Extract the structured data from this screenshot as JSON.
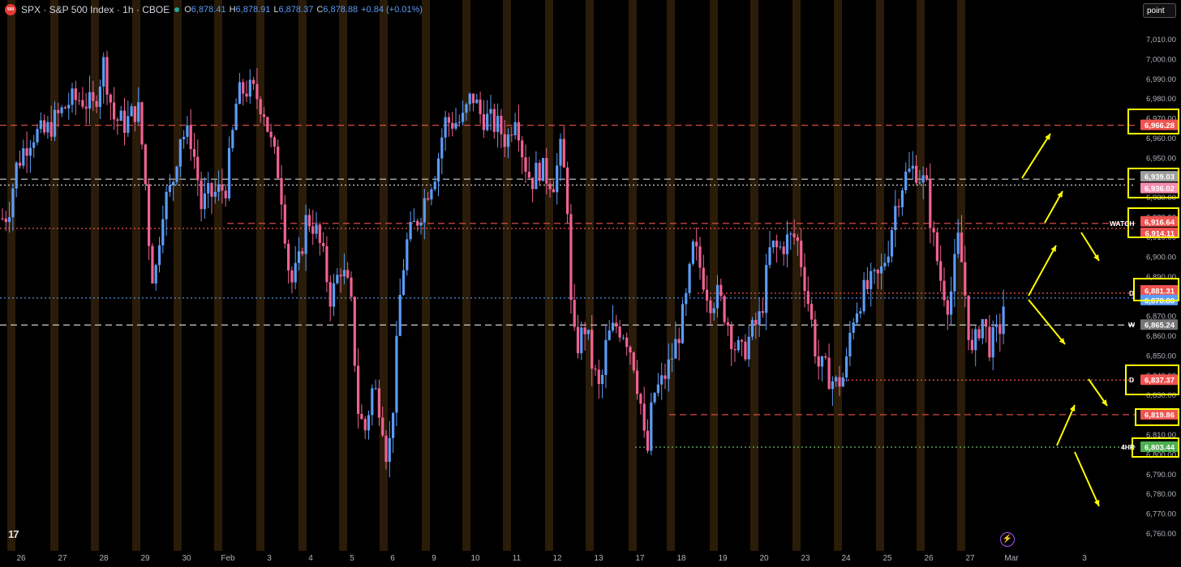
{
  "header": {
    "logo_text": "500",
    "symbol": "SPX · S&P 500 Index · 1h · CBOE",
    "o_label": "O",
    "o_val": "6,878.41",
    "h_label": "H",
    "h_val": "6,878.91",
    "l_label": "L",
    "l_val": "6,878.37",
    "c_label": "C",
    "c_val": "6,878.88",
    "change": "+0.84 (+0.01%)"
  },
  "toolbar": {
    "point_label": "point"
  },
  "branding": {
    "tv_logo": "17"
  },
  "colors": {
    "up": "#5b9cf6",
    "down": "#f06292",
    "session": "#2a1c08",
    "red_line": "#ef5350",
    "white_line": "#cfcfcf",
    "green_line": "#66bb6a",
    "yellow": "#ffff00"
  },
  "chart_data": {
    "type": "candlestick",
    "y_axis": {
      "min": 6755,
      "max": 7018,
      "ticks": [
        "7,010.00",
        "7,000.00",
        "6,990.00",
        "6,980.00",
        "6,970.00",
        "6,960.00",
        "6,950.00",
        "6,940.00",
        "6,930.00",
        "6,920.00",
        "6,910.00",
        "6,900.00",
        "6,890.00",
        "6,880.00",
        "6,870.00",
        "6,860.00",
        "6,850.00",
        "6,840.00",
        "6,830.00",
        "6,820.00",
        "6,810.00",
        "6,800.00",
        "6,790.00",
        "6,780.00",
        "6,770.00",
        "6,760.00"
      ]
    },
    "x_axis": {
      "labels": [
        "26",
        "27",
        "28",
        "29",
        "30",
        "Feb",
        "3",
        "4",
        "5",
        "6",
        "9",
        "10",
        "11",
        "12",
        "13",
        "17",
        "18",
        "19",
        "20",
        "23",
        "24",
        "25",
        "26",
        "27",
        "Mar",
        "3"
      ]
    },
    "anchors": [
      [
        0,
        6918
      ],
      [
        10,
        6922
      ],
      [
        20,
        6945
      ],
      [
        30,
        6955
      ],
      [
        40,
        6962
      ],
      [
        55,
        6962
      ],
      [
        70,
        6970
      ],
      [
        85,
        6978
      ],
      [
        100,
        6980
      ],
      [
        115,
        6975
      ],
      [
        128,
        6998
      ],
      [
        140,
        6970
      ],
      [
        155,
        6967
      ],
      [
        170,
        6976
      ],
      [
        178,
        6945
      ],
      [
        185,
        6900
      ],
      [
        190,
        6885
      ],
      [
        200,
        6925
      ],
      [
        212,
        6935
      ],
      [
        222,
        6962
      ],
      [
        235,
        6960
      ],
      [
        242,
        6945
      ],
      [
        248,
        6925
      ],
      [
        256,
        6930
      ],
      [
        266,
        6932
      ],
      [
        278,
        6935
      ],
      [
        285,
        6955
      ],
      [
        292,
        6980
      ],
      [
        302,
        6985
      ],
      [
        315,
        6982
      ],
      [
        325,
        6975
      ],
      [
        335,
        6955
      ],
      [
        345,
        6940
      ],
      [
        352,
        6910
      ],
      [
        358,
        6885
      ],
      [
        368,
        6895
      ],
      [
        378,
        6920
      ],
      [
        388,
        6915
      ],
      [
        398,
        6900
      ],
      [
        408,
        6878
      ],
      [
        420,
        6895
      ],
      [
        432,
        6880
      ],
      [
        442,
        6820
      ],
      [
        450,
        6812
      ],
      [
        460,
        6835
      ],
      [
        470,
        6822
      ],
      [
        478,
        6795
      ],
      [
        486,
        6832
      ],
      [
        492,
        6875
      ],
      [
        500,
        6905
      ],
      [
        510,
        6915
      ],
      [
        518,
        6922
      ],
      [
        528,
        6935
      ],
      [
        538,
        6945
      ],
      [
        548,
        6968
      ],
      [
        558,
        6968
      ],
      [
        570,
        6968
      ],
      [
        582,
        6982
      ],
      [
        592,
        6972
      ],
      [
        605,
        6968
      ],
      [
        615,
        6965
      ],
      [
        625,
        6958
      ],
      [
        636,
        6975
      ],
      [
        645,
        6950
      ],
      [
        655,
        6938
      ],
      [
        665,
        6945
      ],
      [
        675,
        6940
      ],
      [
        683,
        6938
      ],
      [
        692,
        6955
      ],
      [
        700,
        6925
      ],
      [
        705,
        6860
      ],
      [
        712,
        6855
      ],
      [
        722,
        6865
      ],
      [
        730,
        6845
      ],
      [
        740,
        6830
      ],
      [
        748,
        6858
      ],
      [
        760,
        6865
      ],
      [
        770,
        6862
      ],
      [
        780,
        6850
      ],
      [
        790,
        6825
      ],
      [
        797,
        6795
      ],
      [
        805,
        6830
      ],
      [
        815,
        6835
      ],
      [
        825,
        6845
      ],
      [
        835,
        6858
      ],
      [
        845,
        6875
      ],
      [
        855,
        6905
      ],
      [
        865,
        6892
      ],
      [
        875,
        6878
      ],
      [
        885,
        6880
      ],
      [
        895,
        6870
      ],
      [
        905,
        6855
      ],
      [
        915,
        6850
      ],
      [
        925,
        6860
      ],
      [
        938,
        6870
      ],
      [
        950,
        6905
      ],
      [
        960,
        6903
      ],
      [
        970,
        6908
      ],
      [
        982,
        6910
      ],
      [
        992,
        6888
      ],
      [
        1000,
        6868
      ],
      [
        1008,
        6845
      ],
      [
        1018,
        6842
      ],
      [
        1030,
        6835
      ],
      [
        1042,
        6840
      ],
      [
        1050,
        6868
      ],
      [
        1062,
        6880
      ],
      [
        1072,
        6885
      ],
      [
        1085,
        6890
      ],
      [
        1095,
        6905
      ],
      [
        1105,
        6928
      ],
      [
        1115,
        6940
      ],
      [
        1128,
        6945
      ],
      [
        1142,
        6935
      ],
      [
        1150,
        6910
      ],
      [
        1160,
        6888
      ],
      [
        1170,
        6875
      ],
      [
        1182,
        6910
      ],
      [
        1190,
        6880
      ],
      [
        1198,
        6848
      ],
      [
        1210,
        6870
      ],
      [
        1220,
        6855
      ],
      [
        1232,
        6862
      ],
      [
        1238,
        6878
      ]
    ],
    "horizontal_lines": [
      {
        "price": 6966.28,
        "color": "red",
        "style": "dashed",
        "from_x": 0
      },
      {
        "price": 6939.03,
        "color": "white",
        "style": "dashed",
        "from_x": 0
      },
      {
        "price": 6936.02,
        "color": "white",
        "style": "dotted",
        "from_x": 0
      },
      {
        "price": 6916.64,
        "color": "red",
        "style": "dashed",
        "from_x": 280
      },
      {
        "price": 6914.11,
        "color": "red",
        "style": "dotted",
        "from_x": 0
      },
      {
        "price": 6881.31,
        "color": "red",
        "style": "dotted",
        "from_x": 860
      },
      {
        "price": 6878.88,
        "color": "blue",
        "style": "dotted",
        "from_x": 0
      },
      {
        "price": 6865.24,
        "color": "white",
        "style": "dashed",
        "from_x": 0
      },
      {
        "price": 6837.37,
        "color": "red",
        "style": "dotted",
        "from_x": 1040
      },
      {
        "price": 6819.86,
        "color": "red",
        "style": "dashed",
        "from_x": 825
      },
      {
        "price": 6803.44,
        "color": "green",
        "style": "dotted",
        "from_x": 783
      }
    ],
    "price_labels": [
      {
        "text": "6,966.28",
        "price": 6966.28,
        "color": "#ef5350",
        "boxed": true
      },
      {
        "text": "6,939.03",
        "price": 6939.03,
        "color": "#9e9e9e",
        "boxed": true
      },
      {
        "text": "6,936.02",
        "price": 6936.02,
        "color": "#f48fb1",
        "boxed": true
      },
      {
        "text": "6,916.64",
        "price": 6916.64,
        "color": "#ef5350",
        "boxed": true
      },
      {
        "text": "6,914.11",
        "price": 6914.11,
        "color": "#ef5350",
        "boxed": true
      },
      {
        "text": "6,881.31",
        "price": 6881.31,
        "color": "#ef5350",
        "boxed": true
      },
      {
        "text": "6,878.88",
        "price": 6878.88,
        "color": "#5b9cf6",
        "boxed": true
      },
      {
        "text": "6,865.24",
        "price": 6865.24,
        "color": "#757575",
        "boxed": false
      },
      {
        "text": "6,837.37",
        "price": 6837.37,
        "color": "#ef5350",
        "boxed": true
      },
      {
        "text": "6,819.86",
        "price": 6819.86,
        "color": "#ef5350",
        "boxed": true
      },
      {
        "text": "6,803.44",
        "price": 6803.44,
        "color": "#4caf50",
        "boxed": true
      }
    ],
    "line_tags": [
      {
        "text": "WATCH",
        "price": 6916.64
      },
      {
        "text": "D",
        "price": 6881.31
      },
      {
        "text": "W",
        "price": 6865.24
      },
      {
        "text": "D",
        "price": 6837.37
      },
      {
        "text": "4HR",
        "price": 6803.44
      }
    ],
    "annotations": {
      "arrows": "yellow projection arrows",
      "boxes": "yellow level boxes"
    }
  }
}
